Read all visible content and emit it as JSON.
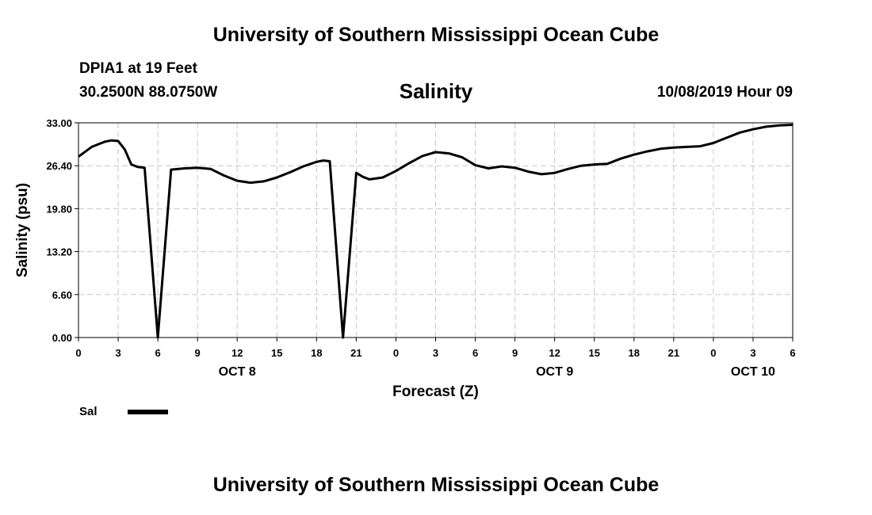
{
  "header": {
    "title": "University of Southern Mississippi Ocean Cube",
    "station": "DPIA1 at 19 Feet",
    "coords": "30.2500N 88.0750W",
    "parameter": "Salinity",
    "datetime": "10/08/2019 Hour 09",
    "footer_title": "University of Southern Mississippi Ocean Cube"
  },
  "chart_data": {
    "type": "line",
    "ylabel": "Salinity (psu)",
    "xlabel": "Forecast (Z)",
    "ylim": [
      0,
      33
    ],
    "yticks": [
      "0.00",
      "6.60",
      "13.20",
      "19.80",
      "26.40",
      "33.00"
    ],
    "xlim": [
      0,
      54
    ],
    "xticks": [
      "0",
      "3",
      "6",
      "9",
      "12",
      "15",
      "18",
      "21",
      "0",
      "3",
      "6",
      "9",
      "12",
      "15",
      "18",
      "21",
      "0",
      "3",
      "6"
    ],
    "day_labels": [
      {
        "label": "OCT 8",
        "hour": 12
      },
      {
        "label": "OCT 9",
        "hour": 36
      },
      {
        "label": "OCT 10",
        "hour": 51
      }
    ],
    "grid": true,
    "legend_position": "bottom-left",
    "series": [
      {
        "name": "Sal",
        "color": "#000000",
        "x": [
          0,
          1,
          2,
          2.5,
          3,
          3.5,
          4,
          4.5,
          5,
          6,
          7,
          8,
          9,
          10,
          11,
          12,
          13,
          14,
          15,
          16,
          17,
          18,
          18.5,
          19,
          20,
          21,
          21.5,
          22,
          23,
          24,
          25,
          26,
          27,
          28,
          29,
          30,
          31,
          32,
          33,
          34,
          35,
          36,
          37,
          38,
          39,
          40,
          41,
          42,
          43,
          44,
          45,
          46,
          47,
          48,
          49,
          50,
          51,
          52,
          53,
          54
        ],
        "y": [
          27.8,
          29.3,
          30.1,
          30.3,
          30.2,
          28.9,
          26.6,
          26.2,
          26.1,
          0.0,
          25.8,
          26.0,
          26.1,
          25.9,
          24.9,
          24.1,
          23.8,
          24.0,
          24.6,
          25.4,
          26.3,
          27.0,
          27.2,
          27.1,
          0.0,
          25.3,
          24.7,
          24.3,
          24.6,
          25.6,
          26.8,
          27.9,
          28.5,
          28.3,
          27.7,
          26.5,
          26.0,
          26.3,
          26.1,
          25.5,
          25.1,
          25.3,
          25.9,
          26.4,
          26.6,
          26.7,
          27.5,
          28.1,
          28.6,
          29.0,
          29.2,
          29.3,
          29.4,
          29.9,
          30.7,
          31.5,
          32.0,
          32.4,
          32.6,
          32.7
        ]
      }
    ]
  }
}
